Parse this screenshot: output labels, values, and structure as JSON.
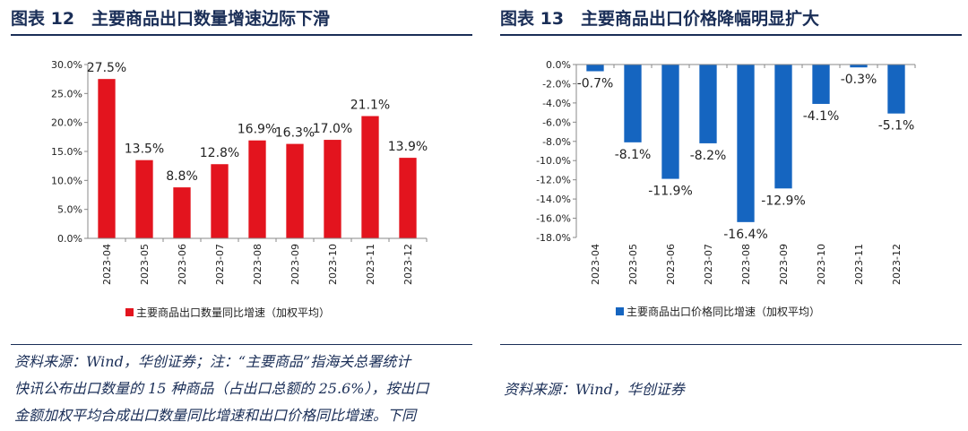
{
  "left": {
    "title": "图表 12　主要商品出口数量增速边际下滑",
    "source_lines": [
      "资料来源：Wind，华创证券；注：“主要商品”指海关总署统计",
      "快讯公布出口数量的 15 种商品（占出口总额的 25.6%），按出口",
      "金额加权平均合成出口数量同比增速和出口价格同比增速。下同"
    ]
  },
  "right": {
    "title": "图表 13　主要商品出口价格降幅明显扩大",
    "source": "资料来源：Wind，华创证券"
  },
  "chart_data": [
    {
      "type": "bar",
      "categories": [
        "2023-04",
        "2023-05",
        "2023-06",
        "2023-07",
        "2023-08",
        "2023-09",
        "2023-10",
        "2023-11",
        "2023-12"
      ],
      "series": [
        {
          "name": "主要商品出口数量同比增速（加权平均）",
          "values": [
            27.5,
            13.5,
            8.8,
            12.8,
            16.9,
            16.3,
            17.0,
            21.1,
            13.9
          ],
          "labels": [
            "27.5%",
            "13.5%",
            "8.8%",
            "12.8%",
            "16.9%",
            "16.3%",
            "17.0%",
            "21.1%",
            "13.9%"
          ]
        }
      ],
      "color": "#e3141e",
      "ylim": [
        0,
        30
      ],
      "yticks": [
        0,
        5,
        10,
        15,
        20,
        25,
        30
      ],
      "ytick_labels": [
        "0.0%",
        "5.0%",
        "10.0%",
        "15.0%",
        "20.0%",
        "25.0%",
        "30.0%"
      ],
      "legend_position": "bottom"
    },
    {
      "type": "bar",
      "categories": [
        "2023-04",
        "2023-05",
        "2023-06",
        "2023-07",
        "2023-08",
        "2023-09",
        "2023-10",
        "2023-11",
        "2023-12"
      ],
      "series": [
        {
          "name": "主要商品出口价格同比增速（加权平均）",
          "values": [
            -0.7,
            -8.1,
            -11.9,
            -8.2,
            -16.4,
            -12.9,
            -4.1,
            -0.3,
            -5.1
          ],
          "labels": [
            "-0.7%",
            "-8.1%",
            "-11.9%",
            "-8.2%",
            "-16.4%",
            "-12.9%",
            "-4.1%",
            "-0.3%",
            "-5.1%"
          ]
        }
      ],
      "color": "#1565c0",
      "ylim": [
        -18,
        0
      ],
      "yticks": [
        0,
        -2,
        -4,
        -6,
        -8,
        -10,
        -12,
        -14,
        -16,
        -18
      ],
      "ytick_labels": [
        "0.0%",
        "-2.0%",
        "-4.0%",
        "-6.0%",
        "-8.0%",
        "-10.0%",
        "-12.0%",
        "-14.0%",
        "-16.0%",
        "-18.0%"
      ],
      "legend_position": "bottom"
    }
  ]
}
